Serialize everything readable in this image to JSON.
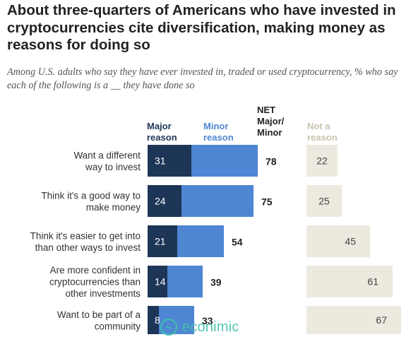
{
  "chart_data": {
    "type": "bar",
    "orientation": "horizontal",
    "title": "About three-quarters of Americans who have invested in cryptocurrencies cite diversification, making money as reasons for doing so",
    "subtitle": "Among U.S. adults who say they have ever invested in, traded or used cryptocurrency, % who say each of the following is a __ they have done so",
    "column_headers": {
      "major": "Major reason",
      "minor": "Minor reason",
      "net": "NET Major/ Minor",
      "not": "Not a reason"
    },
    "categories": [
      "Want a different way to invest",
      "Think it's a good way to make money",
      "Think it's easier to get into than other ways to invest",
      "Are more confident in cryptocurrencies than other investments",
      "Want to be part of a community"
    ],
    "category_lines": [
      [
        "Want a different",
        "way to invest"
      ],
      [
        "Think it's a good way to",
        "make money"
      ],
      [
        "Think it's easier to get into",
        "than other ways to invest"
      ],
      [
        "Are more confident in",
        "cryptocurrencies than",
        "other investments"
      ],
      [
        "Want to be part of a",
        "community"
      ]
    ],
    "series": [
      {
        "name": "Major reason",
        "values": [
          31,
          24,
          21,
          14,
          8
        ]
      },
      {
        "name": "Minor reason",
        "values": [
          47,
          51,
          33,
          25,
          25
        ]
      },
      {
        "name": "NET Major/Minor",
        "values": [
          78,
          75,
          54,
          39,
          33
        ]
      },
      {
        "name": "Not a reason",
        "values": [
          22,
          25,
          45,
          61,
          67
        ]
      }
    ],
    "xlim": [
      0,
      100
    ],
    "grid": false,
    "legend": "column headers above bars",
    "colors": {
      "major": "#1d3557",
      "minor": "#4f86d4",
      "not": "#ece9df",
      "major_header": "#1d3557",
      "minor_header": "#4f86d4",
      "not_header": "#c8c3ad"
    }
  },
  "watermark": {
    "text": "econimic",
    "icon": "econimic-logo-icon"
  }
}
